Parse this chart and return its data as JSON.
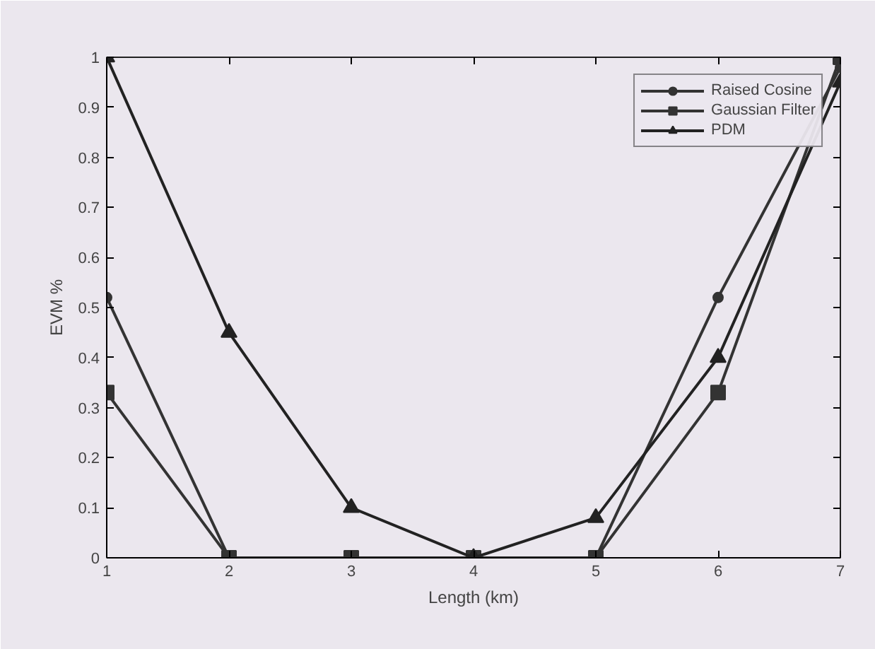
{
  "chart_data": {
    "type": "line",
    "xlabel": "Length (km)",
    "ylabel": "EVM %",
    "x": [
      1,
      2,
      3,
      4,
      5,
      6,
      7
    ],
    "series": [
      {
        "name": "Raised Cosine",
        "color": "#333333",
        "marker": "circle",
        "values": [
          0.52,
          0,
          0,
          0,
          0,
          0.52,
          0.98
        ]
      },
      {
        "name": "Gaussian Filter",
        "color": "#333333",
        "marker": "square",
        "values": [
          0.33,
          0,
          0,
          0,
          0,
          0.33,
          1.0
        ]
      },
      {
        "name": "PDM",
        "color": "#222222",
        "marker": "triangle",
        "values": [
          1.0,
          0.45,
          0.1,
          0,
          0.08,
          0.4,
          0.95
        ]
      }
    ],
    "xlim": [
      1,
      7
    ],
    "ylim": [
      0,
      1
    ],
    "xticks": [
      1,
      2,
      3,
      4,
      5,
      6,
      7
    ],
    "yticks": [
      0,
      0.1,
      0.2,
      0.3,
      0.4,
      0.5,
      0.6,
      0.7,
      0.8,
      0.9,
      1
    ],
    "grid": false,
    "legend": "top right",
    "line_style": "solid"
  }
}
